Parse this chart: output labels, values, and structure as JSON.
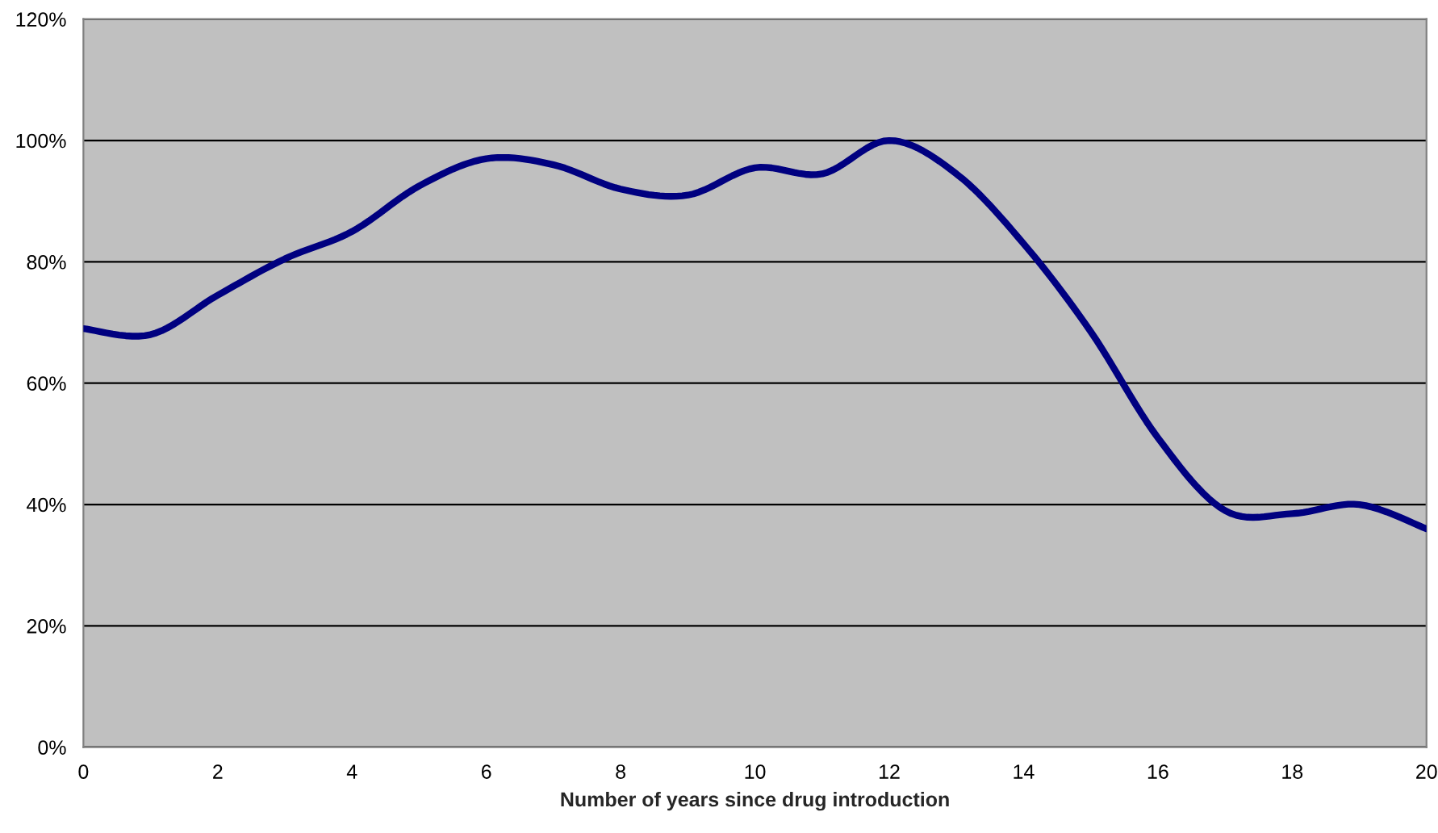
{
  "chart_data": {
    "type": "line",
    "xlabel": "Number of years since drug introduction",
    "x": [
      0,
      1,
      2,
      3,
      4,
      5,
      6,
      7,
      8,
      9,
      10,
      11,
      12,
      13,
      14,
      15,
      16,
      17,
      18,
      19,
      20
    ],
    "series": [
      {
        "color": "#000080",
        "values": [
          69,
          68,
          74.5,
          80.5,
          85,
          92.5,
          97,
          96,
          92,
          91,
          95.5,
          94.5,
          100,
          94.5,
          83,
          68.5,
          51,
          39,
          38.5,
          40,
          36
        ]
      }
    ],
    "xlim": [
      0,
      20
    ],
    "xticks": [
      0,
      2,
      4,
      6,
      8,
      10,
      12,
      14,
      16,
      18,
      20
    ],
    "ylim": [
      0,
      120
    ],
    "yticks": [
      {
        "value": 0,
        "label": "0%"
      },
      {
        "value": 20,
        "label": "20%"
      },
      {
        "value": 40,
        "label": "40%"
      },
      {
        "value": 60,
        "label": "60%"
      },
      {
        "value": 80,
        "label": "80%"
      },
      {
        "value": 100,
        "label": "100%"
      },
      {
        "value": 120,
        "label": "120%"
      }
    ],
    "grid": "y",
    "marker": "none",
    "line_style": "solid"
  }
}
